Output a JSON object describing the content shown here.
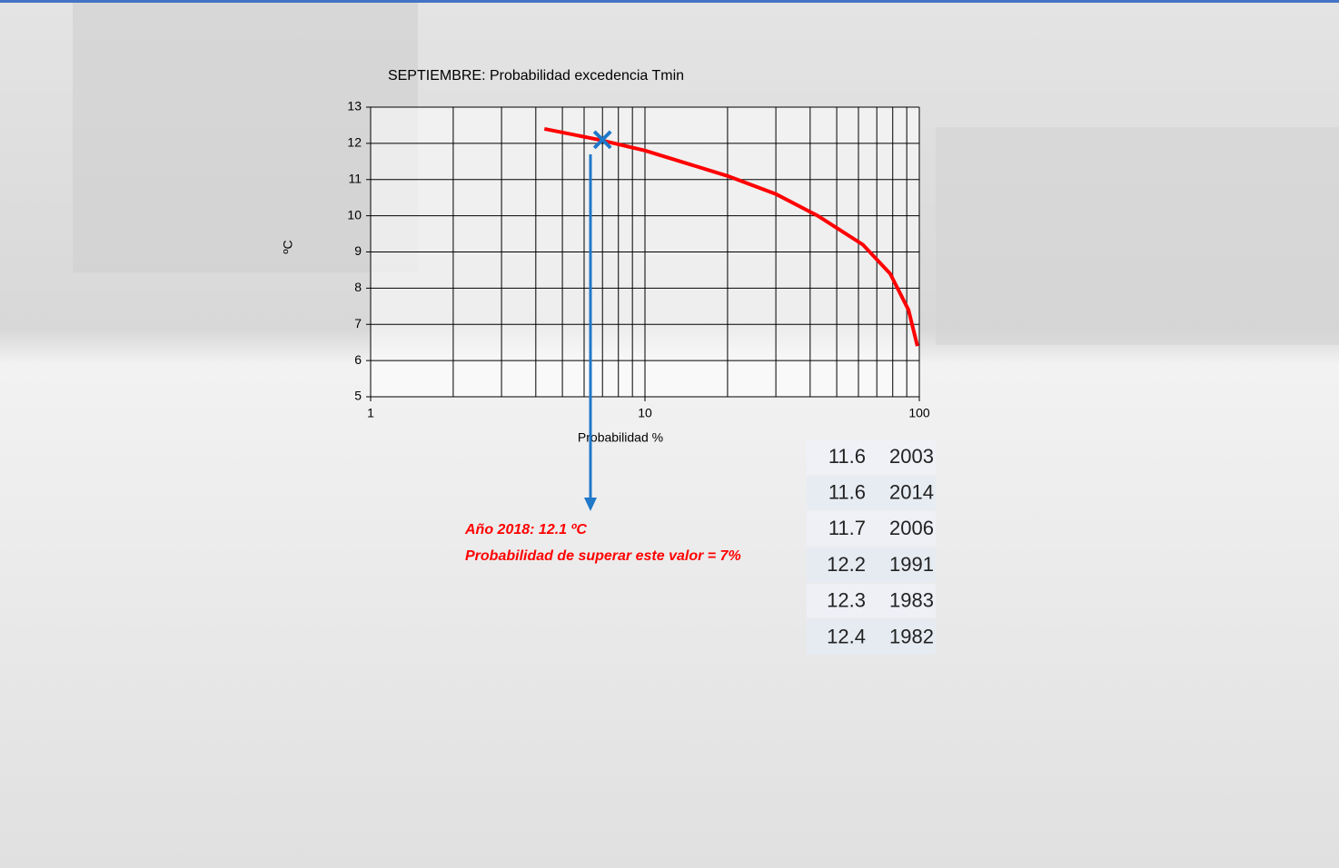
{
  "chart_data": {
    "type": "line",
    "title": "SEPTIEMBRE: Probabilidad excedencia Tmin",
    "x_label": "Probabilidad %",
    "y_label": "ºC",
    "x_scale": "log",
    "grid": true,
    "xlim": [
      1,
      100
    ],
    "xticks": [
      1,
      10,
      100
    ],
    "ylim": [
      5,
      13
    ],
    "yticks": [
      5,
      6,
      7,
      8,
      9,
      10,
      11,
      12,
      13
    ],
    "series": [
      {
        "color": "#ff0000",
        "x": [
          4.3,
          6.8,
          10,
          20,
          30,
          42.6,
          62.3,
          78.3,
          91.3,
          98.4
        ],
        "values": [
          12.4,
          12.1,
          11.8,
          11.1,
          10.6,
          10.0,
          9.2,
          8.4,
          7.4,
          6.4
        ]
      }
    ],
    "marker": {
      "x": 7,
      "y": 12.1,
      "color": "#1f78c8"
    },
    "annotations": [
      "Año 2018: 12.1 ºC",
      "Probabilidad de superar este valor = 7%"
    ]
  },
  "table": {
    "rows": [
      [
        "11.6",
        "2003"
      ],
      [
        "11.6",
        "2014"
      ],
      [
        "11.7",
        "2006"
      ],
      [
        "12.2",
        "1991"
      ],
      [
        "12.3",
        "1983"
      ],
      [
        "12.4",
        "1982"
      ]
    ]
  }
}
